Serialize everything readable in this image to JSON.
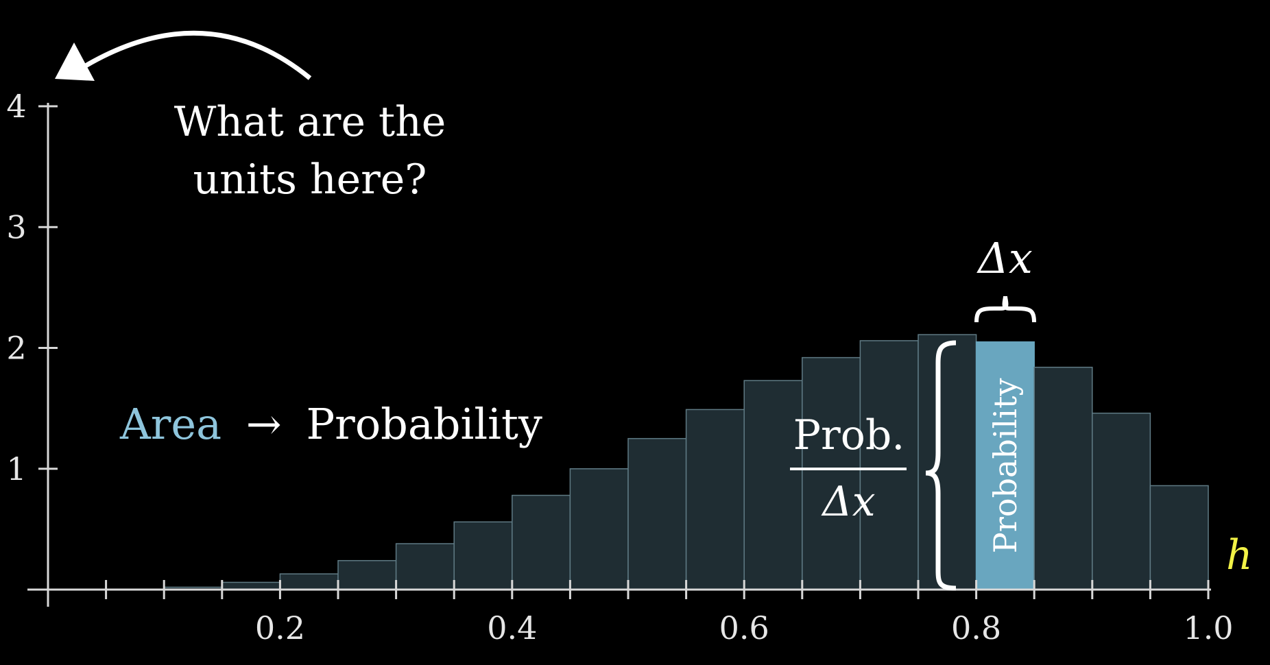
{
  "annotations": {
    "question_line1": "What are the",
    "question_line2": "units here?",
    "area_word": "Area",
    "arrow": "→",
    "probability_word": "Probability",
    "fraction_numerator": "Prob.",
    "fraction_denominator": "Δx",
    "delta_x": "Δx",
    "bar_label": "Probability"
  },
  "colors": {
    "background": "#000000",
    "bar_fill": "#1f2d33",
    "bar_stroke": "#5f7a84",
    "highlight_bar": "#69a6bf",
    "area_text": "#8ec5dc",
    "axis_label": "#f2f246",
    "text": "#ffffff"
  },
  "chart_data": {
    "type": "bar",
    "title": "",
    "xlabel": "h",
    "ylabel": "",
    "xlim": [
      0.0,
      1.0
    ],
    "ylim": [
      0,
      4
    ],
    "bin_width": 0.05,
    "x_ticks": [
      0.2,
      0.4,
      0.6,
      0.8,
      1.0
    ],
    "x_tick_labels": [
      "0.2",
      "0.4",
      "0.6",
      "0.8",
      "1.0"
    ],
    "y_ticks": [
      1,
      2,
      3,
      4
    ],
    "y_tick_labels": [
      "1",
      "2",
      "3",
      "4"
    ],
    "bin_starts": [
      0.0,
      0.05,
      0.1,
      0.15,
      0.2,
      0.25,
      0.3,
      0.35,
      0.4,
      0.45,
      0.5,
      0.55,
      0.6,
      0.65,
      0.7,
      0.75,
      0.8,
      0.85,
      0.9,
      0.95
    ],
    "values": [
      0.0,
      0.0,
      0.02,
      0.06,
      0.13,
      0.24,
      0.38,
      0.56,
      0.78,
      1.0,
      1.25,
      1.49,
      1.73,
      1.92,
      2.06,
      2.11,
      2.05,
      1.84,
      1.46,
      0.86
    ],
    "highlight_bin_start": 0.8,
    "grid": false,
    "legend": "none"
  }
}
